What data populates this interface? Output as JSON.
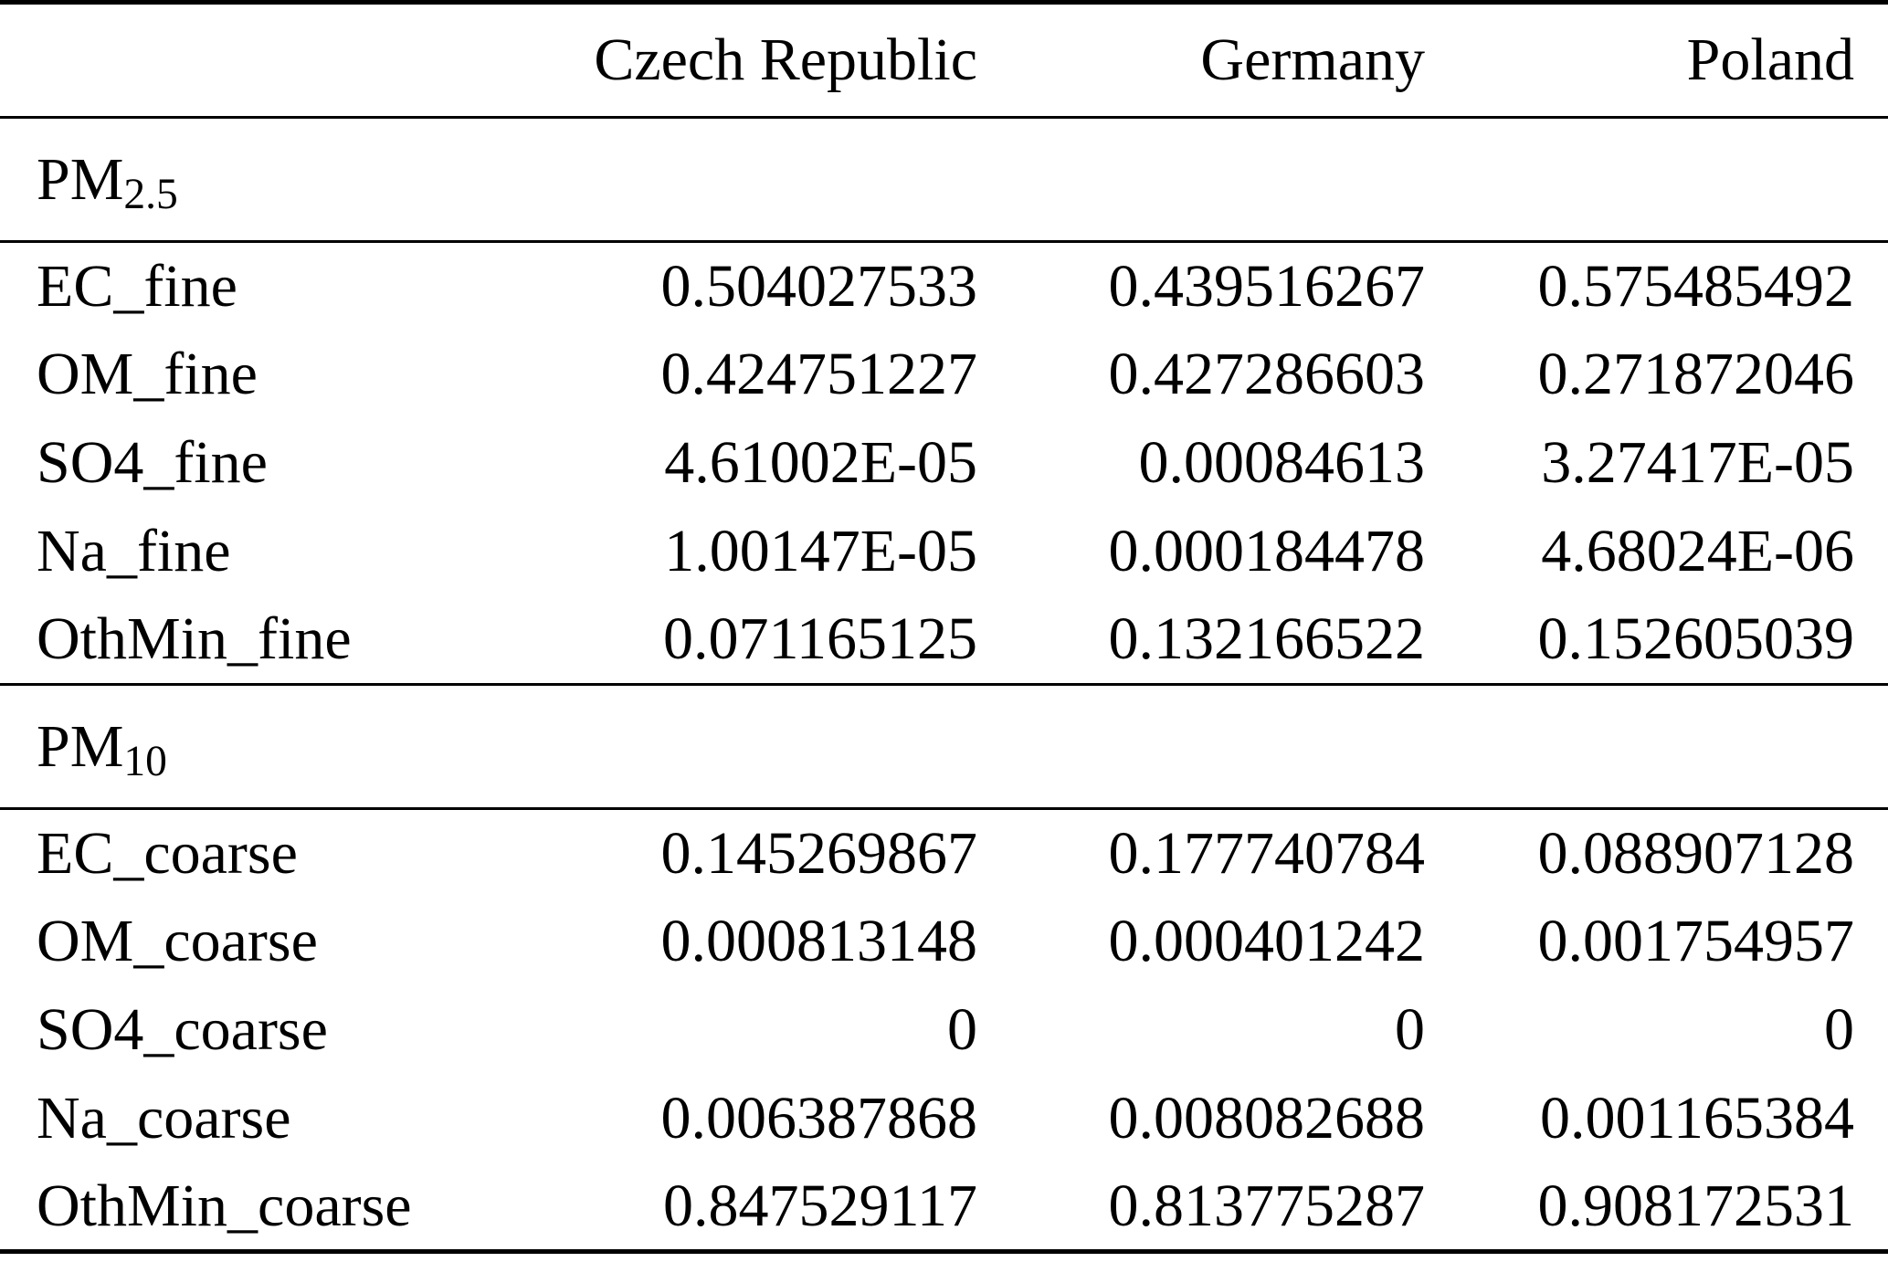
{
  "colors": {
    "text": "#000000",
    "background": "#ffffff",
    "rule": "#000000"
  },
  "table": {
    "columns": {
      "col0": "",
      "col1": "Czech Republic",
      "col2": "Germany",
      "col3": "Poland"
    },
    "sections": [
      {
        "label_main": "PM",
        "label_sub": "2.5",
        "rows": [
          {
            "name": "EC_fine",
            "values": [
              "0.504027533",
              "0.439516267",
              "0.575485492"
            ]
          },
          {
            "name": "OM_fine",
            "values": [
              "0.424751227",
              "0.427286603",
              "0.271872046"
            ]
          },
          {
            "name": "SO4_fine",
            "values": [
              "4.61002E-05",
              "0.00084613",
              "3.27417E-05"
            ]
          },
          {
            "name": "Na_fine",
            "values": [
              "1.00147E-05",
              "0.000184478",
              "4.68024E-06"
            ]
          },
          {
            "name": "OthMin_fine",
            "values": [
              "0.071165125",
              "0.132166522",
              "0.152605039"
            ]
          }
        ]
      },
      {
        "label_main": "PM",
        "label_sub": "10",
        "rows": [
          {
            "name": "EC_coarse",
            "values": [
              "0.145269867",
              "0.177740784",
              "0.088907128"
            ]
          },
          {
            "name": "OM_coarse",
            "values": [
              "0.000813148",
              "0.000401242",
              "0.001754957"
            ]
          },
          {
            "name": "SO4_coarse",
            "values": [
              "0",
              "0",
              "0"
            ]
          },
          {
            "name": "Na_coarse",
            "values": [
              "0.006387868",
              "0.008082688",
              "0.001165384"
            ]
          },
          {
            "name": "OthMin_coarse",
            "values": [
              "0.847529117",
              "0.813775287",
              "0.908172531"
            ]
          }
        ]
      }
    ]
  },
  "chart_data": {
    "type": "table",
    "title": "",
    "columns": [
      "",
      "Czech Republic",
      "Germany",
      "Poland"
    ],
    "groups": [
      {
        "group": "PM2.5",
        "rows": [
          [
            "EC_fine",
            0.504027533,
            0.439516267,
            0.575485492
          ],
          [
            "OM_fine",
            0.424751227,
            0.427286603,
            0.271872046
          ],
          [
            "SO4_fine",
            4.61002e-05,
            0.00084613,
            3.27417e-05
          ],
          [
            "Na_fine",
            1.00147e-05,
            0.000184478,
            4.68024e-06
          ],
          [
            "OthMin_fine",
            0.071165125,
            0.132166522,
            0.152605039
          ]
        ]
      },
      {
        "group": "PM10",
        "rows": [
          [
            "EC_coarse",
            0.145269867,
            0.177740784,
            0.088907128
          ],
          [
            "OM_coarse",
            0.000813148,
            0.000401242,
            0.001754957
          ],
          [
            "SO4_coarse",
            0,
            0,
            0
          ],
          [
            "Na_coarse",
            0.006387868,
            0.008082688,
            0.001165384
          ],
          [
            "OthMin_coarse",
            0.847529117,
            0.813775287,
            0.908172531
          ]
        ]
      }
    ]
  }
}
